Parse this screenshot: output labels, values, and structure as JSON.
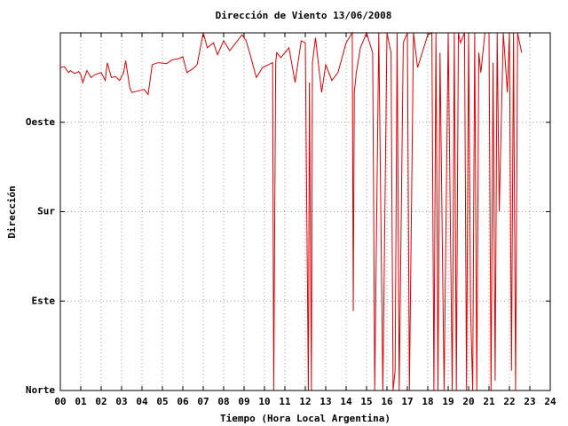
{
  "chart_data": {
    "type": "line",
    "title": "Dirección de Viento 13/06/2008",
    "xlabel": "Tiempo (Hora Local Argentina)",
    "ylabel": "Dirección",
    "x": [
      0,
      0.2,
      0.4,
      0.5,
      0.7,
      0.9,
      1.0,
      1.1,
      1.3,
      1.5,
      1.7,
      2.0,
      2.2,
      2.3,
      2.5,
      2.7,
      2.9,
      3.1,
      3.2,
      3.4,
      3.5,
      3.9,
      4.1,
      4.3,
      4.5,
      4.8,
      5.2,
      5.5,
      5.8,
      6.0,
      6.2,
      6.5,
      6.7,
      7.0,
      7.2,
      7.5,
      7.7,
      8.0,
      8.3,
      8.6,
      8.9,
      9.1,
      9.3,
      9.6,
      9.9,
      10.2,
      10.4,
      10.45,
      10.55,
      10.6,
      10.8,
      11.2,
      11.5,
      11.8,
      12.0,
      12.15,
      12.2,
      12.3,
      12.35,
      12.5,
      12.8,
      13.0,
      13.3,
      13.6,
      14.0,
      14.3,
      14.35,
      14.4,
      14.5,
      14.7,
      15.0,
      15.3,
      15.35,
      15.4,
      15.6,
      15.8,
      16.0,
      16.2,
      16.3,
      16.4,
      16.5,
      16.6,
      16.8,
      17.0,
      17.1,
      17.2,
      17.3,
      17.5,
      18.0,
      18.2,
      18.3,
      18.4,
      18.5,
      18.6,
      18.8,
      19.0,
      19.1,
      19.2,
      19.3,
      19.4,
      19.5,
      19.6,
      19.8,
      19.9,
      20.0,
      20.1,
      20.2,
      20.3,
      20.4,
      20.5,
      20.6,
      20.8,
      21.0,
      21.1,
      21.2,
      21.3,
      21.4,
      21.5,
      21.7,
      21.9,
      22.0,
      22.1,
      22.2,
      22.3,
      22.4,
      22.5,
      22.6
    ],
    "series": [
      {
        "color": "#e00000",
        "values": [
          325,
          326,
          320,
          322,
          319,
          321,
          318,
          310,
          322,
          315,
          318,
          320,
          312,
          330,
          315,
          316,
          312,
          320,
          332,
          305,
          300,
          302,
          303,
          298,
          328,
          330,
          329,
          333,
          334,
          336,
          320,
          324,
          328,
          360,
          345,
          350,
          338,
          352,
          342,
          350,
          358,
          352,
          338,
          315,
          325,
          328,
          330,
          0,
          330,
          340,
          335,
          345,
          310,
          352,
          350,
          0,
          310,
          0,
          330,
          355,
          300,
          328,
          312,
          320,
          350,
          360,
          80,
          300,
          320,
          345,
          360,
          340,
          180,
          0,
          360,
          0,
          360,
          340,
          0,
          20,
          360,
          0,
          350,
          360,
          0,
          180,
          360,
          325,
          358,
          360,
          0,
          360,
          0,
          340,
          0,
          360,
          180,
          0,
          360,
          0,
          360,
          350,
          360,
          0,
          360,
          80,
          0,
          360,
          0,
          340,
          320,
          360,
          360,
          0,
          330,
          10,
          360,
          180,
          360,
          300,
          360,
          20,
          360,
          0,
          360,
          350,
          340
        ]
      }
    ],
    "xlim": [
      0,
      24
    ],
    "xticks": [
      {
        "value": 0,
        "label": "00"
      },
      {
        "value": 1,
        "label": "01"
      },
      {
        "value": 2,
        "label": "02"
      },
      {
        "value": 3,
        "label": "03"
      },
      {
        "value": 4,
        "label": "04"
      },
      {
        "value": 5,
        "label": "05"
      },
      {
        "value": 6,
        "label": "06"
      },
      {
        "value": 7,
        "label": "07"
      },
      {
        "value": 8,
        "label": "08"
      },
      {
        "value": 9,
        "label": "09"
      },
      10,
      11,
      12,
      13,
      14,
      15,
      16,
      17,
      18,
      19,
      20,
      21,
      22,
      23,
      24
    ],
    "ylim": [
      0,
      360
    ],
    "yticks": [
      {
        "value": 0,
        "label": "Norte"
      },
      {
        "value": 90,
        "label": "Este"
      },
      {
        "value": 180,
        "label": "Sur"
      },
      {
        "value": 270,
        "label": "Oeste"
      }
    ],
    "grid": true
  }
}
